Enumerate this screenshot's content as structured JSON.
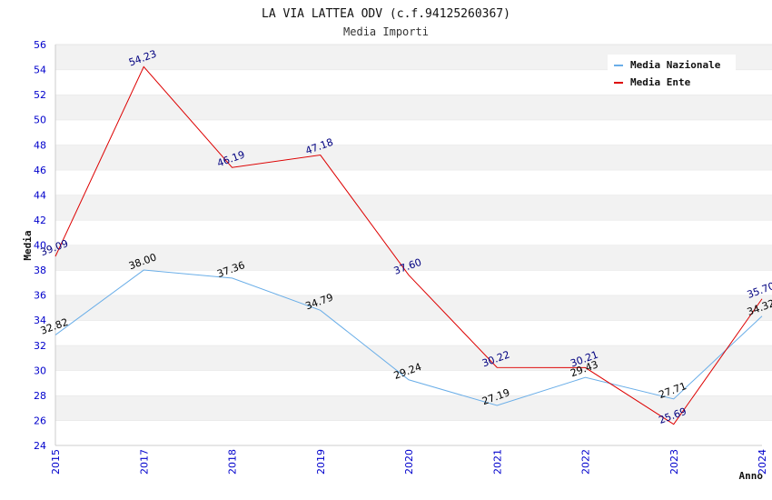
{
  "chart_data": {
    "type": "line",
    "title": "LA VIA LATTEA ODV (c.f.94125260367)",
    "subtitle": "Media Importi",
    "xlabel": "Anno",
    "ylabel": "Media",
    "categories": [
      "2015",
      "2017",
      "2018",
      "2019",
      "2020",
      "2021",
      "2022",
      "2023",
      "2024"
    ],
    "ylim": [
      24,
      56
    ],
    "yticks": [
      24,
      26,
      28,
      30,
      32,
      34,
      36,
      38,
      40,
      42,
      44,
      46,
      48,
      50,
      52,
      54,
      56
    ],
    "grid": "horizontal bands",
    "legend_position": "top-right",
    "series": [
      {
        "name": "Media Nazionale",
        "color": "#6aaee8",
        "label_color": "#000000",
        "values": [
          32.82,
          38.0,
          37.36,
          34.79,
          29.24,
          27.19,
          29.43,
          27.71,
          34.32
        ],
        "labels": [
          "32.82",
          "38.00",
          "37.36",
          "34.79",
          "29.24",
          "27.19",
          "29.43",
          "27.71",
          "34.32"
        ]
      },
      {
        "name": "Media Ente",
        "color": "#dd0000",
        "label_color": "#000080",
        "values": [
          39.09,
          54.23,
          46.19,
          47.18,
          37.6,
          30.22,
          30.21,
          25.69,
          35.7
        ],
        "labels": [
          "39.09",
          "54.23",
          "46.19",
          "47.18",
          "37.60",
          "30.22",
          "30.21",
          "25.69",
          "35.70"
        ]
      }
    ]
  }
}
